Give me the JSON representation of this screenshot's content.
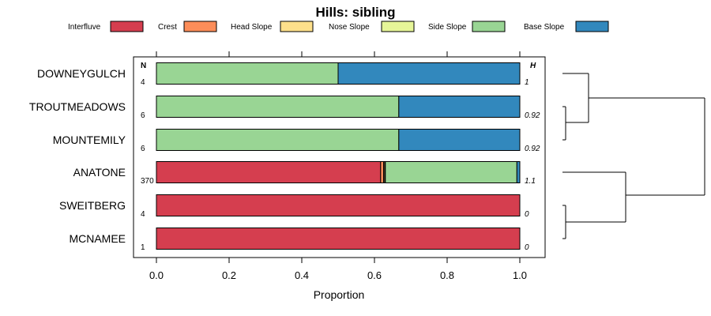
{
  "chart_data": {
    "type": "bar",
    "orientation": "horizontal",
    "stacked": true,
    "title": "Hills: sibling",
    "xlabel": "Proportion",
    "ylabel": "",
    "xlim": [
      0,
      1
    ],
    "xticks": [
      "0.0",
      "0.2",
      "0.4",
      "0.6",
      "0.8",
      "1.0"
    ],
    "legend_position": "top",
    "categories": [
      "DOWNEYGULCH",
      "TROUTMEADOWS",
      "MOUNTEMILY",
      "ANATONE",
      "SWEITBERG",
      "MCNAMEE"
    ],
    "n_header": "N",
    "h_header": "H",
    "n_values": [
      "4",
      "6",
      "6",
      "370",
      "4",
      "1"
    ],
    "h_values": [
      "1",
      "0.92",
      "0.92",
      "1.1",
      "0",
      "0"
    ],
    "series": [
      {
        "name": "Interfluve",
        "color": "#D53E4F",
        "values": [
          0,
          0,
          0,
          0.617,
          1,
          1
        ]
      },
      {
        "name": "Crest",
        "color": "#FC8D59",
        "values": [
          0,
          0,
          0,
          0.008,
          0,
          0
        ]
      },
      {
        "name": "Head Slope",
        "color": "#FEE08B",
        "values": [
          0,
          0,
          0,
          0.003,
          0,
          0
        ]
      },
      {
        "name": "Nose Slope",
        "color": "#E6F598",
        "values": [
          0,
          0,
          0,
          0.002,
          0,
          0
        ]
      },
      {
        "name": "Side Slope",
        "color": "#99D594",
        "values": [
          0.5,
          0.667,
          0.667,
          0.362,
          0,
          0
        ]
      },
      {
        "name": "Base Slope",
        "color": "#3288BD",
        "values": [
          0.5,
          0.333,
          0.333,
          0.008,
          0,
          0
        ]
      }
    ],
    "dendrogram": "((DOWNEYGULCH,(TROUTMEADOWS,MOUNTEMILY)),(ANATONE,(SWEITBERG,MCNAMEE)))"
  }
}
